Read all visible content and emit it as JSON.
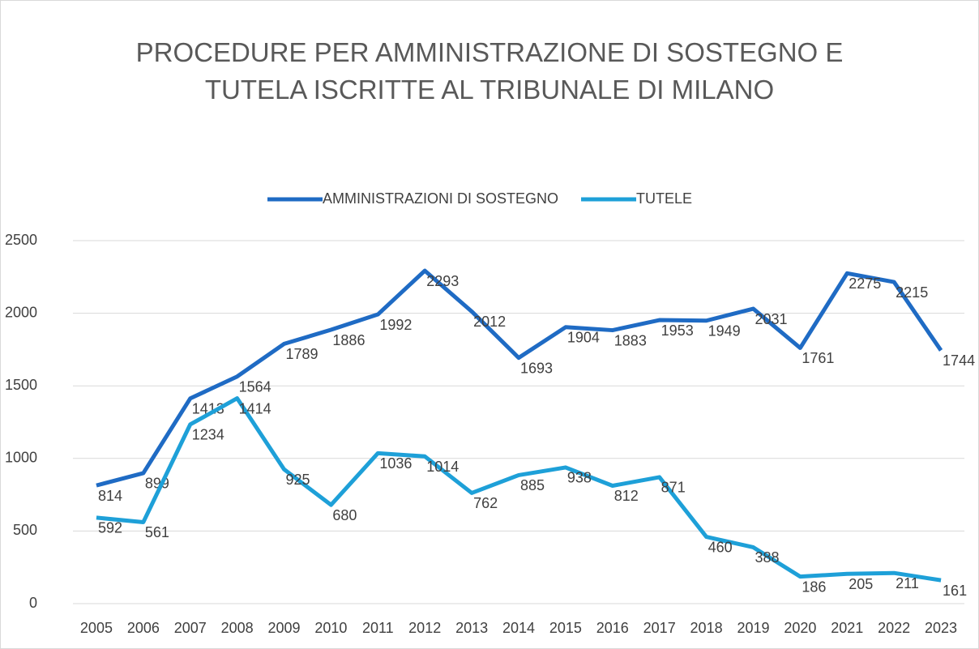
{
  "chart_data": {
    "type": "line",
    "title": "PROCEDURE PER AMMINISTRAZIONE DI SOSTEGNO E TUTELA ISCRITTE AL TRIBUNALE DI MILANO",
    "categories": [
      "2005",
      "2006",
      "2007",
      "2008",
      "2009",
      "2010",
      "2011",
      "2012",
      "2013",
      "2014",
      "2015",
      "2016",
      "2017",
      "2018",
      "2019",
      "2020",
      "2021",
      "2022",
      "2023"
    ],
    "series": [
      {
        "name": "AMMINISTRAZIONI DI SOSTEGNO",
        "color": "#1f6bc4",
        "values": [
          814,
          899,
          1413,
          1564,
          1789,
          1886,
          1992,
          2293,
          2012,
          1693,
          1904,
          1883,
          1953,
          1949,
          2031,
          1761,
          2275,
          2215,
          1744
        ]
      },
      {
        "name": "TUTELE",
        "color": "#1ea0d8",
        "values": [
          592,
          561,
          1234,
          1414,
          925,
          680,
          1036,
          1014,
          762,
          885,
          938,
          812,
          871,
          460,
          388,
          186,
          205,
          211,
          161
        ]
      }
    ],
    "ylim": [
      0,
      2500
    ],
    "yticks": [
      0,
      500,
      1000,
      1500,
      2000,
      2500
    ],
    "grid": true,
    "legend": "top"
  }
}
